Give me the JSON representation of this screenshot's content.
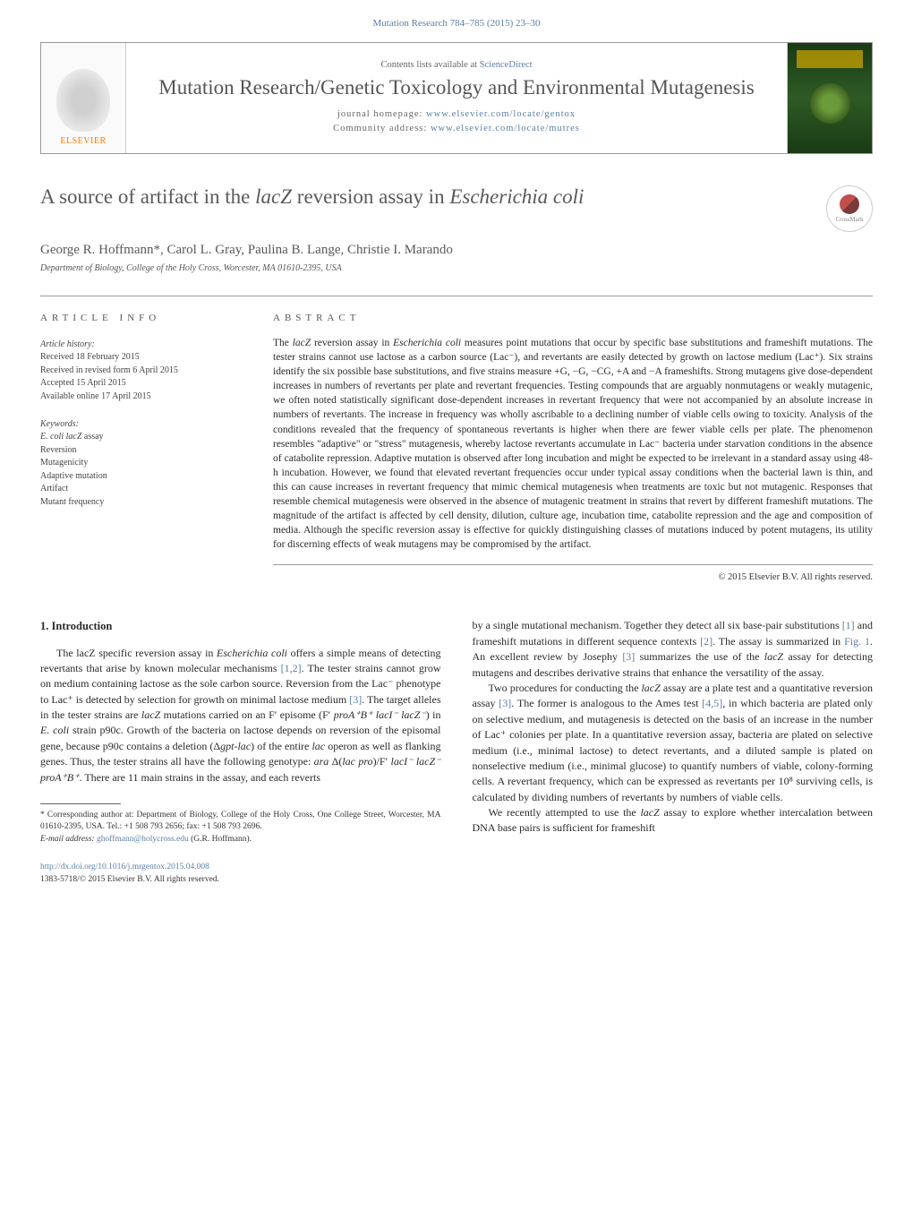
{
  "journal_ref": "Mutation Research 784–785 (2015) 23–30",
  "header": {
    "publisher_name": "ELSEVIER",
    "contents_prefix": "Contents lists available at ",
    "contents_link": "ScienceDirect",
    "journal_title": "Mutation Research/Genetic Toxicology and Environmental Mutagenesis",
    "homepage_label": "journal homepage: ",
    "homepage_url": "www.elsevier.com/locate/gentox",
    "community_label": "Community address: ",
    "community_url": "www.elsevier.com/locate/mutres"
  },
  "crossmark_label": "CrossMark",
  "article": {
    "title_pre": "A source of artifact in the ",
    "title_italic1": "lacZ",
    "title_mid": " reversion assay in ",
    "title_italic2": "Escherichia coli",
    "authors": "George R. Hoffmann*, Carol L. Gray, Paulina B. Lange, Christie I. Marando",
    "affiliation": "Department of Biology, College of the Holy Cross, Worcester, MA 01610-2395, USA"
  },
  "info": {
    "heading": "ARTICLE INFO",
    "history_label": "Article history:",
    "history_lines": "Received 18 February 2015\nReceived in revised form 6 April 2015\nAccepted 15 April 2015\nAvailable online 17 April 2015",
    "keywords_label": "Keywords:",
    "kw1_italic": "E. coli lacZ",
    "kw1_rest": " assay",
    "kw_rest": "Reversion\nMutagenicity\nAdaptive mutation\nArtifact\nMutant frequency"
  },
  "abstract": {
    "heading": "ABSTRACT",
    "text_parts": {
      "p1": "The ",
      "i1": "lacZ",
      "p2": " reversion assay in ",
      "i2": "Escherichia coli",
      "p3": " measures point mutations that occur by specific base substitutions and frameshift mutations. The tester strains cannot use lactose as a carbon source (Lac⁻), and revertants are easily detected by growth on lactose medium (Lac⁺). Six strains identify the six possible base substitutions, and five strains measure +G, −G, −CG, +A and −A frameshifts. Strong mutagens give dose-dependent increases in numbers of revertants per plate and revertant frequencies. Testing compounds that are arguably nonmutagens or weakly mutagenic, we often noted statistically significant dose-dependent increases in revertant frequency that were not accompanied by an absolute increase in numbers of revertants. The increase in frequency was wholly ascribable to a declining number of viable cells owing to toxicity. Analysis of the conditions revealed that the frequency of spontaneous revertants is higher when there are fewer viable cells per plate. The phenomenon resembles \"adaptive\" or \"stress\" mutagenesis, whereby lactose revertants accumulate in Lac⁻ bacteria under starvation conditions in the absence of catabolite repression. Adaptive mutation is observed after long incubation and might be expected to be irrelevant in a standard assay using 48-h incubation. However, we found that elevated revertant frequencies occur under typical assay conditions when the bacterial lawn is thin, and this can cause increases in revertant frequency that mimic chemical mutagenesis when treatments are toxic but not mutagenic. Responses that resemble chemical mutagenesis were observed in the absence of mutagenic treatment in strains that revert by different frameshift mutations. The magnitude of the artifact is affected by cell density, dilution, culture age, incubation time, catabolite repression and the age and composition of media. Although the specific reversion assay is effective for quickly distinguishing classes of mutations induced by potent mutagens, its utility for discerning effects of weak mutagens may be compromised by the artifact."
    },
    "copyright": "© 2015 Elsevier B.V. All rights reserved."
  },
  "body": {
    "intro_heading": "1. Introduction",
    "left_para1_parts": {
      "p1": "The lacZ specific reversion assay in ",
      "i1": "Escherichia coli",
      "p2": " offers a simple means of detecting revertants that arise by known molecular mechanisms ",
      "c1": "[1,2]",
      "p3": ". The tester strains cannot grow on medium containing lactose as the sole carbon source. Reversion from the Lac⁻ phenotype to Lac⁺ is detected by selection for growth on minimal lactose medium ",
      "c2": "[3]",
      "p4": ". The target alleles in the tester strains are ",
      "i2": "lacZ",
      "p5": " mutations carried on an F′ episome (F′ ",
      "i3": "proA⁺B⁺ lacI⁻ lacZ⁻",
      "p6": ") in ",
      "i4": "E. coli",
      "p7": " strain p90c. Growth of the bacteria on lactose depends on reversion of the episomal gene, because p90c contains a deletion (Δ",
      "i5": "gpt-lac",
      "p8": ") of the entire ",
      "i6": "lac",
      "p9": " operon as well as flanking genes. Thus, the tester strains all have the following genotype: ",
      "i7": "ara",
      "p10": " Δ(",
      "i8": "lac pro",
      "p11": ")/F′ ",
      "i9": "lacI⁻ lacZ⁻ proA⁺B⁺",
      "p12": ". There are 11 main strains in the assay, and each reverts"
    },
    "right_para1_parts": {
      "p1": "by a single mutational mechanism. Together they detect all six base-pair substitutions ",
      "c1": "[1]",
      "p2": " and frameshift mutations in different sequence contexts ",
      "c2": "[2]",
      "p3": ". The assay is summarized in ",
      "c3": "Fig. 1",
      "p4": ". An excellent review by Josephy ",
      "c4": "[3]",
      "p5": " summarizes the use of the ",
      "i1": "lacZ",
      "p6": " assay for detecting mutagens and describes derivative strains that enhance the versatility of the assay."
    },
    "right_para2_parts": {
      "p1": "Two procedures for conducting the ",
      "i1": "lacZ",
      "p2": " assay are a plate test and a quantitative reversion assay ",
      "c1": "[3]",
      "p3": ". The former is analogous to the Ames test ",
      "c2": "[4,5]",
      "p4": ", in which bacteria are plated only on selective medium, and mutagenesis is detected on the basis of an increase in the number of Lac⁺ colonies per plate. In a quantitative reversion assay, bacteria are plated on selective medium (i.e., minimal lactose) to detect revertants, and a diluted sample is plated on nonselective medium (i.e., minimal glucose) to quantify numbers of viable, colony-forming cells. A revertant frequency, which can be expressed as revertants per 10⁸ surviving cells, is calculated by dividing numbers of revertants by numbers of viable cells."
    },
    "right_para3_parts": {
      "p1": "We recently attempted to use the ",
      "i1": "lacZ",
      "p2": " assay to explore whether intercalation between DNA base pairs is sufficient for frameshift"
    }
  },
  "footer": {
    "corresponding": "* Corresponding author at: Department of Biology, College of the Holy Cross, One College Street, Worcester, MA 01610-2395, USA. Tel.: +1 508 793 2656; fax: +1 508 793 2696.",
    "email_label": "E-mail address: ",
    "email": "ghoffmann@holycross.edu",
    "email_suffix": " (G.R. Hoffmann).",
    "doi": "http://dx.doi.org/10.1016/j.mrgentox.2015.04.008",
    "rights": "1383-5718/© 2015 Elsevier B.V. All rights reserved."
  }
}
